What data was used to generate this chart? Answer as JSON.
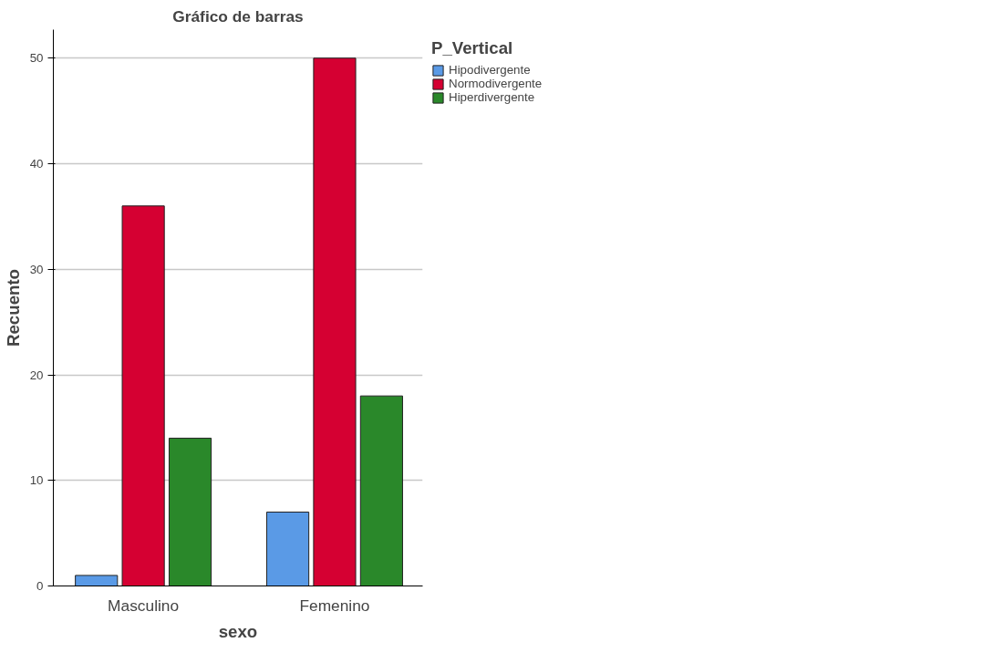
{
  "chart_data": {
    "type": "bar",
    "title": "Gráfico de barras",
    "xlabel": "sexo",
    "ylabel": "Recuento",
    "legend_title": "P_Vertical",
    "categories": [
      "Masculino",
      "Femenino"
    ],
    "series": [
      {
        "name": "Hipodivergente",
        "color": "#5a9ae6",
        "values": [
          1,
          7
        ]
      },
      {
        "name": "Normodivergente",
        "color": "#d50032",
        "values": [
          36,
          50
        ]
      },
      {
        "name": "Hiperdivergente",
        "color": "#2a882a",
        "values": [
          14,
          18
        ]
      }
    ],
    "ylim": [
      0,
      52.7
    ],
    "yticks": [
      0,
      10,
      20,
      30,
      40,
      50
    ],
    "grid": "y",
    "legend": "top right"
  }
}
